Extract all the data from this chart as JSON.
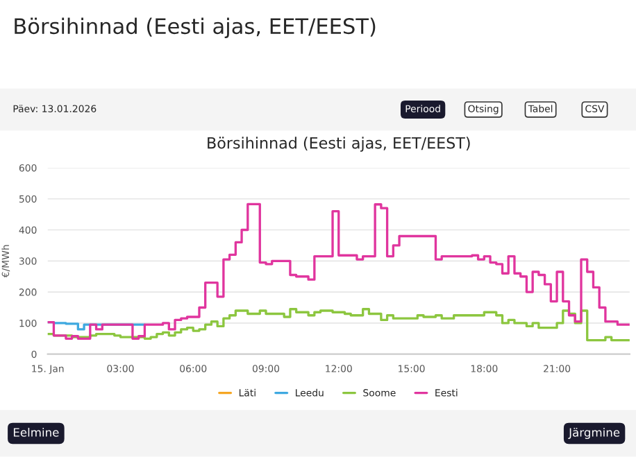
{
  "chart_data": {
    "type": "step",
    "title": "Börsihinnad (Eesti ajas, EET/EEST)",
    "ylabel": "€/MWh",
    "annotations": [
      "Börsihinnad (Eesti ajas, EET/EEST)",
      "Päev: 13.01.2026",
      "Periood",
      "Otsing",
      "Tabel",
      "CSV",
      "Eelmine",
      "Järgmine"
    ],
    "xlim": [
      0,
      24
    ],
    "xticks": [
      {
        "value": 0,
        "label": "15. Jan"
      },
      {
        "value": 3,
        "label": "03:00"
      },
      {
        "value": 6,
        "label": "06:00"
      },
      {
        "value": 9,
        "label": "09:00"
      },
      {
        "value": 12,
        "label": "12:00"
      },
      {
        "value": 15,
        "label": "15:00"
      },
      {
        "value": 18,
        "label": "18:00"
      },
      {
        "value": 21,
        "label": "21:00"
      }
    ],
    "ylim": [
      0,
      600
    ],
    "yticks": [
      0,
      100,
      200,
      300,
      400,
      500,
      600
    ],
    "grid": "y",
    "legend": "bottom",
    "line_style": "solid",
    "marker": "none",
    "series": [
      {
        "name": "Läti",
        "color": "#f5a623"
      },
      {
        "name": "Leedu",
        "color": "#3fa9e0",
        "x": [
          0,
          0.25,
          0.75,
          1.25,
          1.5,
          4
        ],
        "values": [
          103,
          100,
          98,
          80,
          95,
          95
        ]
      },
      {
        "name": "Soome",
        "color": "#8cc63f",
        "x": [
          0,
          0.25,
          1,
          1.75,
          2,
          2.75,
          3,
          4,
          4.25,
          4.5,
          4.75,
          5,
          5.25,
          5.5,
          5.75,
          6,
          6.25,
          6.5,
          6.75,
          7,
          7.25,
          7.5,
          7.75,
          8.25,
          8.75,
          9,
          9.75,
          10,
          10.25,
          10.75,
          11,
          11.25,
          11.75,
          12.25,
          12.5,
          13,
          13.25,
          13.75,
          14,
          14.25,
          15.25,
          15.5,
          16,
          16.25,
          16.75,
          18,
          18.5,
          18.75,
          19,
          19.25,
          19.75,
          20,
          20.25,
          21,
          21.25,
          21.5,
          21.75,
          22,
          22.25,
          23,
          23.25,
          24
        ],
        "values": [
          65,
          60,
          55,
          60,
          65,
          60,
          55,
          50,
          55,
          65,
          70,
          60,
          70,
          80,
          85,
          75,
          80,
          95,
          105,
          90,
          115,
          125,
          140,
          130,
          140,
          130,
          120,
          145,
          135,
          125,
          135,
          140,
          135,
          130,
          125,
          145,
          130,
          110,
          125,
          115,
          125,
          120,
          125,
          115,
          125,
          135,
          125,
          100,
          110,
          100,
          90,
          100,
          85,
          100,
          140,
          130,
          100,
          140,
          45,
          55,
          45,
          45
        ]
      },
      {
        "name": "Eesti",
        "color": "#e0359e",
        "x": [
          0,
          0.25,
          0.75,
          1,
          1.25,
          1.75,
          2,
          2.25,
          3.5,
          3.75,
          4,
          4.75,
          5,
          5.25,
          5.5,
          5.75,
          6.25,
          6.5,
          7,
          7.25,
          7.5,
          7.75,
          8,
          8.25,
          8.75,
          9,
          9.25,
          10,
          10.25,
          10.75,
          11,
          11.75,
          12,
          12.75,
          13,
          13.5,
          13.75,
          14,
          14.25,
          14.5,
          16,
          16.25,
          17.5,
          17.75,
          18,
          18.25,
          18.5,
          18.75,
          19,
          19.25,
          19.5,
          19.75,
          20,
          20.25,
          20.5,
          20.75,
          21,
          21.25,
          21.5,
          21.75,
          22,
          22.25,
          22.5,
          22.75,
          23,
          23.5,
          24
        ],
        "values": [
          103,
          60,
          50,
          58,
          50,
          95,
          80,
          95,
          50,
          58,
          95,
          100,
          80,
          110,
          115,
          120,
          150,
          230,
          185,
          305,
          320,
          360,
          400,
          483,
          295,
          290,
          300,
          255,
          250,
          240,
          315,
          460,
          318,
          305,
          315,
          482,
          470,
          315,
          350,
          380,
          305,
          315,
          318,
          305,
          315,
          295,
          290,
          260,
          315,
          260,
          250,
          200,
          265,
          255,
          225,
          170,
          265,
          170,
          125,
          105,
          305,
          265,
          215,
          150,
          105,
          95,
          95
        ]
      }
    ]
  }
}
